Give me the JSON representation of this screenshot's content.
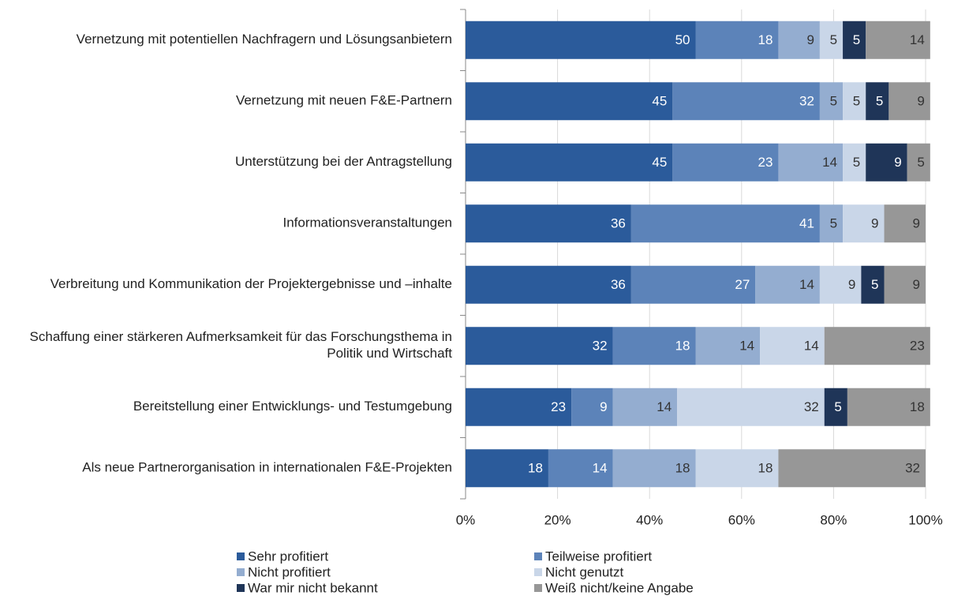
{
  "chart_data": {
    "type": "stacked_bar_horizontal",
    "categories": [
      "Vernetzung mit potentiellen Nachfragern und Lösungsanbietern",
      "Vernetzung mit neuen F&E-Partnern",
      "Unterstützung bei der Antragstellung",
      "Informationsveranstaltungen",
      "Verbreitung und Kommunikation der Projektergebnisse und –inhalte",
      "Schaffung einer stärkeren Aufmerksamkeit für das Forschungsthema in Politik und Wirtschaft",
      "Bereitstellung einer Entwicklungs- und Testumgebung",
      "Als neue Partnerorganisation in internationalen F&E-Projekten"
    ],
    "series": [
      {
        "name": "Sehr profitiert",
        "color": "#2b5b9b",
        "values": [
          50,
          45,
          45,
          36,
          36,
          32,
          23,
          18
        ]
      },
      {
        "name": "Teilweise profitiert",
        "color": "#5c83b9",
        "values": [
          18,
          32,
          23,
          41,
          27,
          18,
          9,
          14
        ]
      },
      {
        "name": "Nicht profitiert",
        "color": "#94add0",
        "values": [
          9,
          5,
          14,
          5,
          14,
          14,
          14,
          18
        ]
      },
      {
        "name": "Nicht genutzt",
        "color": "#c9d6e8",
        "values": [
          5,
          5,
          5,
          9,
          9,
          14,
          32,
          18
        ]
      },
      {
        "name": "War mir nicht bekannt",
        "color": "#1f3558",
        "values": [
          5,
          5,
          9,
          null,
          5,
          null,
          5,
          null
        ]
      },
      {
        "name": "Weiß nicht/keine Angabe",
        "color": "#979797",
        "values": [
          14,
          9,
          5,
          9,
          9,
          23,
          18,
          32
        ]
      }
    ],
    "xlim": [
      0,
      100
    ],
    "xticks": [
      {
        "value": 0,
        "label": "0%"
      },
      {
        "value": 20,
        "label": "20%"
      },
      {
        "value": 40,
        "label": "40%"
      },
      {
        "value": 60,
        "label": "60%"
      },
      {
        "value": 80,
        "label": "80%"
      },
      {
        "value": 100,
        "label": "100%"
      }
    ],
    "grid": true
  }
}
